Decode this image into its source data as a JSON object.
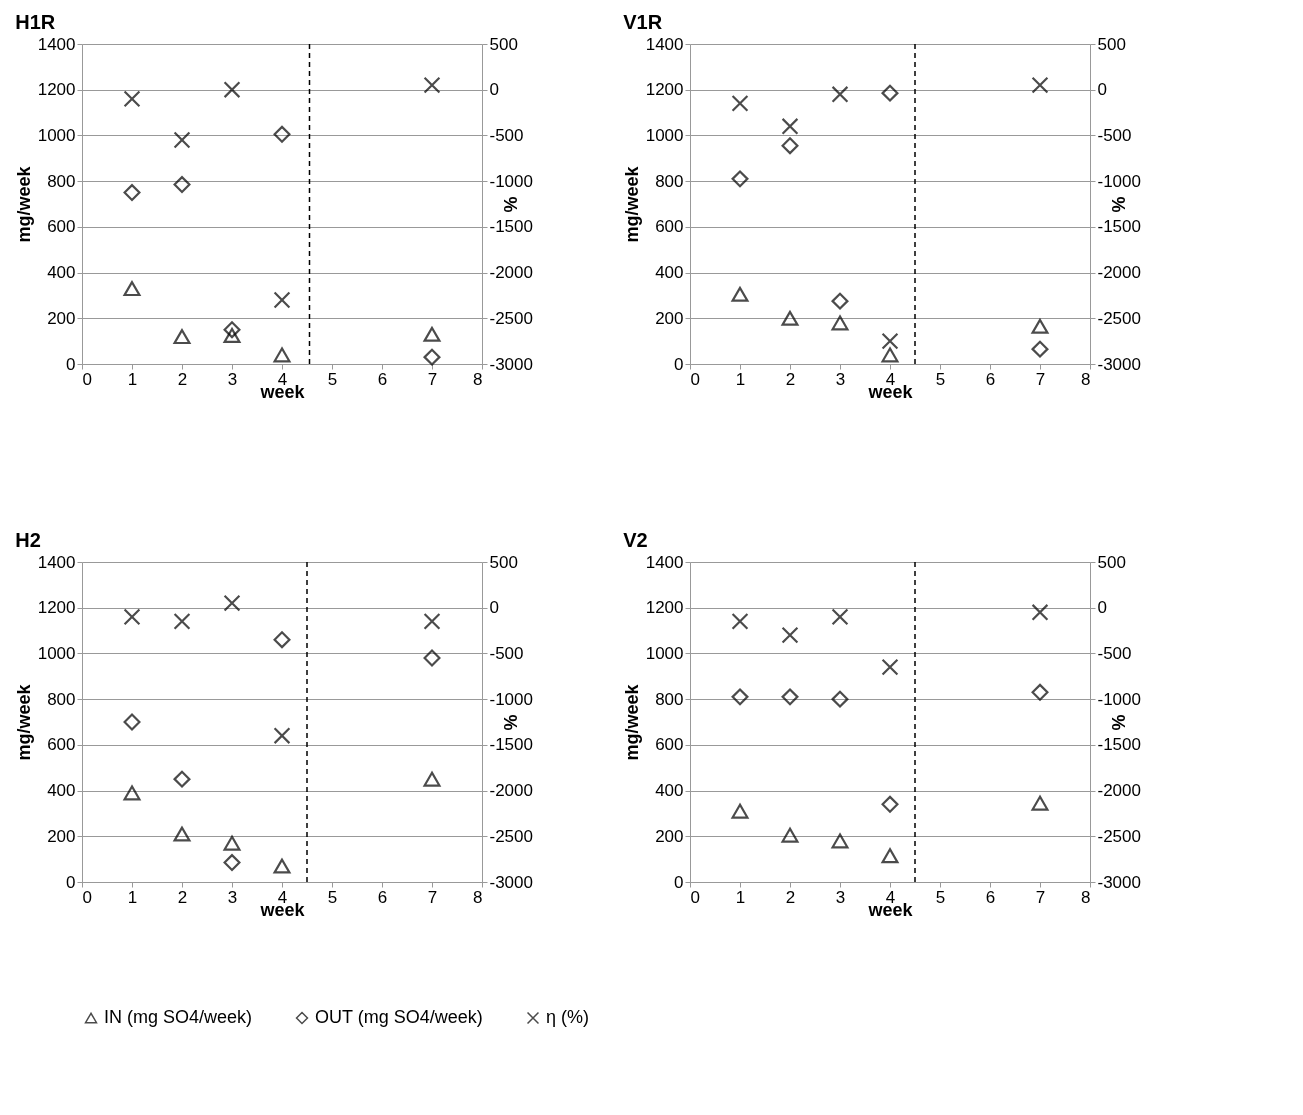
{
  "chart_data": [
    {
      "type": "scatter",
      "title": "H1R",
      "xlabel": "week",
      "ylabel": "mg/week",
      "y2label": "%",
      "x": [
        1,
        2,
        3,
        4,
        7
      ],
      "xlim": [
        0,
        8
      ],
      "xticks": [
        0,
        1,
        2,
        3,
        4,
        5,
        6,
        7,
        8
      ],
      "ylim": [
        0,
        1400
      ],
      "yticks": [
        0,
        200,
        400,
        600,
        800,
        1000,
        1200,
        1400
      ],
      "y2lim": [
        -3000,
        500
      ],
      "y2ticks": [
        -3000,
        -2500,
        -2000,
        -1500,
        -1000,
        -500,
        0,
        500
      ],
      "grid": "y",
      "legend": "bottom",
      "series": [
        {
          "name": "IN (mg SO4/week)",
          "color": "#000000",
          "marker": "triangle",
          "values": [
            330,
            120,
            125,
            40,
            130
          ]
        },
        {
          "name": "OUT (mg SO4/week)",
          "color": "#000000",
          "marker": "diamond",
          "values": [
            750,
            785,
            150,
            1005,
            30
          ]
        },
        {
          "name": "η (%)",
          "color": "#000000",
          "marker": "cross",
          "axis": "y2",
          "values": [
            -100,
            -550,
            0,
            -2300,
            50
          ]
        }
      ],
      "ref_lines": [
        {
          "axis": "x",
          "value": 4.55,
          "color": "#000000",
          "line_style": "dashed"
        }
      ]
    },
    {
      "type": "scatter",
      "title": "V1R",
      "xlabel": "week",
      "ylabel": "mg/week",
      "y2label": "%",
      "x": [
        1,
        2,
        3,
        4,
        7
      ],
      "xlim": [
        0,
        8
      ],
      "xticks": [
        0,
        1,
        2,
        3,
        4,
        5,
        6,
        7,
        8
      ],
      "ylim": [
        0,
        1400
      ],
      "yticks": [
        0,
        200,
        400,
        600,
        800,
        1000,
        1200,
        1400
      ],
      "y2lim": [
        -3000,
        500
      ],
      "y2ticks": [
        -3000,
        -2500,
        -2000,
        -1500,
        -1000,
        -500,
        0,
        500
      ],
      "grid": "y",
      "legend": "bottom",
      "series": [
        {
          "name": "IN (mg SO4/week)",
          "color": "#000000",
          "marker": "triangle",
          "values": [
            305,
            200,
            180,
            40,
            165
          ]
        },
        {
          "name": "OUT (mg SO4/week)",
          "color": "#000000",
          "marker": "diamond",
          "values": [
            810,
            955,
            275,
            1185,
            65
          ]
        },
        {
          "name": "η (%)",
          "color": "#000000",
          "marker": "cross",
          "axis": "y2",
          "values": [
            -150,
            -400,
            -50,
            -2750,
            50
          ]
        }
      ],
      "ref_lines": [
        {
          "axis": "x",
          "value": 4.5,
          "color": "#000000",
          "line_style": "dashed"
        }
      ]
    },
    {
      "type": "scatter",
      "title": "H2",
      "xlabel": "week",
      "ylabel": "mg/week",
      "y2label": "%",
      "x": [
        1,
        2,
        3,
        4,
        7
      ],
      "xlim": [
        0,
        8
      ],
      "xticks": [
        0,
        1,
        2,
        3,
        4,
        5,
        6,
        7,
        8
      ],
      "ylim": [
        0,
        1400
      ],
      "yticks": [
        0,
        200,
        400,
        600,
        800,
        1000,
        1200,
        1400
      ],
      "y2lim": [
        -3000,
        500
      ],
      "y2ticks": [
        -3000,
        -2500,
        -2000,
        -1500,
        -1000,
        -500,
        0,
        500
      ],
      "grid": "y",
      "legend": "bottom",
      "series": [
        {
          "name": "IN (mg SO4/week)",
          "color": "#000000",
          "marker": "triangle",
          "values": [
            390,
            210,
            170,
            70,
            450
          ]
        },
        {
          "name": "OUT (mg SO4/week)",
          "color": "#000000",
          "marker": "diamond",
          "values": [
            700,
            450,
            85,
            1060,
            980
          ]
        },
        {
          "name": "η (%)",
          "color": "#000000",
          "marker": "cross",
          "axis": "y2",
          "values": [
            -100,
            -150,
            50,
            -1400,
            -150
          ]
        }
      ],
      "ref_lines": [
        {
          "axis": "x",
          "value": 4.5,
          "color": "#000000",
          "line_style": "dashed"
        }
      ]
    },
    {
      "type": "scatter",
      "title": "V2",
      "xlabel": "week",
      "ylabel": "mg/week",
      "y2label": "%",
      "x": [
        1,
        2,
        3,
        4,
        7
      ],
      "xlim": [
        0,
        8
      ],
      "xticks": [
        0,
        1,
        2,
        3,
        4,
        5,
        6,
        7,
        8
      ],
      "ylim": [
        0,
        1400
      ],
      "yticks": [
        0,
        200,
        400,
        600,
        800,
        1000,
        1200,
        1400
      ],
      "y2lim": [
        -3000,
        500
      ],
      "y2ticks": [
        -3000,
        -2500,
        -2000,
        -1500,
        -1000,
        -500,
        0,
        500
      ],
      "grid": "y",
      "legend": "bottom",
      "series": [
        {
          "name": "IN (mg SO4/week)",
          "color": "#000000",
          "marker": "triangle",
          "values": [
            310,
            205,
            180,
            115,
            345
          ]
        },
        {
          "name": "OUT (mg SO4/week)",
          "color": "#000000",
          "marker": "diamond",
          "values": [
            810,
            810,
            800,
            340,
            830
          ]
        },
        {
          "name": "η (%)",
          "color": "#000000",
          "marker": "cross",
          "axis": "y2",
          "values": [
            -150,
            -300,
            -100,
            -650,
            -50
          ]
        }
      ],
      "ref_lines": [
        {
          "axis": "x",
          "value": 4.5,
          "color": "#000000",
          "line_style": "dashed"
        }
      ]
    }
  ]
}
